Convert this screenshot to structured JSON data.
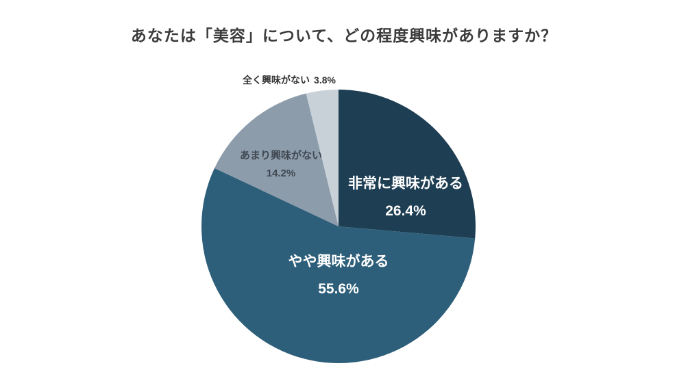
{
  "title": "あなたは「美容」について、どの程度興味がありますか？",
  "chart_data": {
    "type": "pie",
    "title": "あなたは「美容」について、どの程度興味がありますか？",
    "start_angle_deg": 0,
    "direction": "clockwise",
    "legend_position": "none",
    "segments": [
      {
        "label": "非常に興味がある",
        "value": 26.4,
        "percent_label": "26.4%",
        "color": "#1e3e53"
      },
      {
        "label": "やや興味がある",
        "value": 55.6,
        "percent_label": "55.6%",
        "color": "#2e5f7a"
      },
      {
        "label": "あまり興味がない",
        "value": 14.2,
        "percent_label": "14.2%",
        "color": "#8d9cab"
      },
      {
        "label": "全く興味がない",
        "value": 3.8,
        "percent_label": "3.8%",
        "color": "#c8d1d8"
      }
    ]
  }
}
